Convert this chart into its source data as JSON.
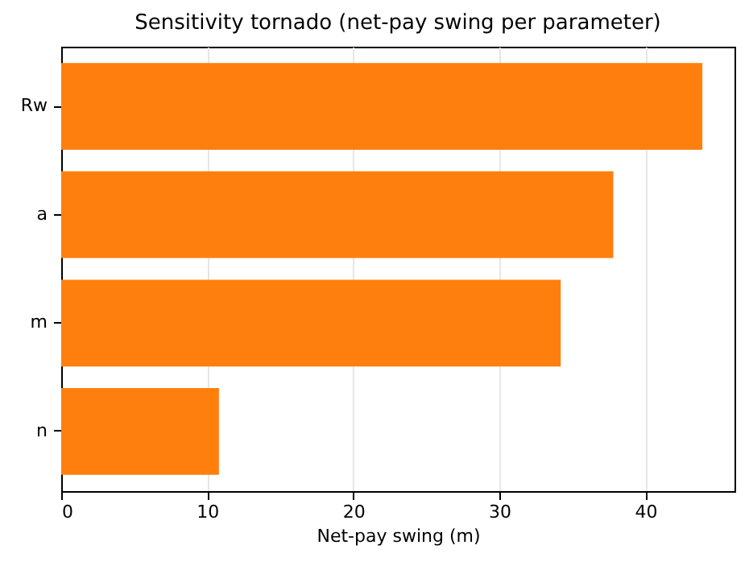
{
  "chart_data": {
    "type": "bar",
    "orientation": "horizontal",
    "title": "Sensitivity tornado (net-pay swing per parameter)",
    "xlabel": "Net-pay swing (m)",
    "categories": [
      "Rw",
      "a",
      "m",
      "n"
    ],
    "values": [
      43.9,
      37.8,
      34.2,
      10.8
    ],
    "color": "#ff7f0e",
    "xlim": [
      0,
      46.1
    ],
    "xticks": [
      0,
      10,
      20,
      30,
      40
    ],
    "grid": "x"
  }
}
